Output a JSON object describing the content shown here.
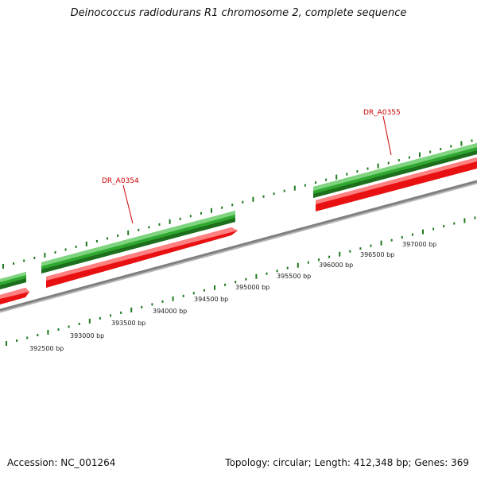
{
  "title": "Deinococcus radiodurans R1 chromosome 2, complete sequence",
  "footer": {
    "accession": "Accession: NC_001264",
    "summary": "Topology: circular; Length: 412,348 bp; Genes: 369"
  },
  "colors": {
    "forward_gene": "#2fa82f",
    "reverse_gene": "#e81010",
    "backbone": "#808080",
    "tick": "#1e7a1e",
    "label": "#cc0000"
  },
  "genes": [
    {
      "label": "DR_A0354"
    },
    {
      "label": "DR_A0355"
    }
  ],
  "scale_labels": [
    "392500 bp",
    "393000 bp",
    "393500 bp",
    "394000 bp",
    "394500 bp",
    "395000 bp",
    "395500 bp",
    "396000 bp",
    "396500 bp",
    "397000 bp"
  ]
}
